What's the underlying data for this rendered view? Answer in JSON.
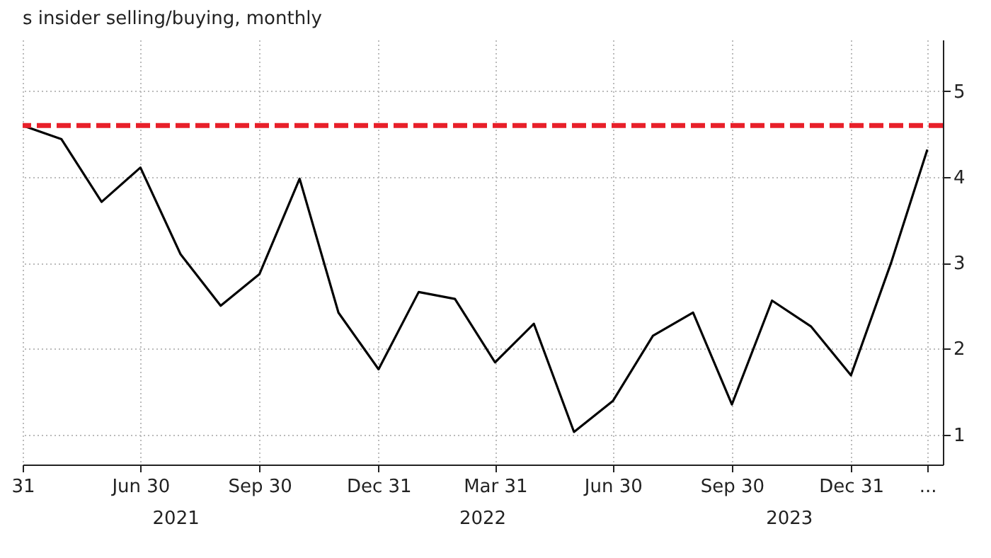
{
  "chart_data": {
    "type": "line",
    "subtitle": "s insider selling/buying, monthly",
    "x": [
      "2021-03-31",
      "2021-04-30",
      "2021-05-31",
      "2021-06-30",
      "2021-07-31",
      "2021-08-31",
      "2021-09-30",
      "2021-10-31",
      "2021-11-30",
      "2021-12-31",
      "2022-01-31",
      "2022-02-28",
      "2022-03-31",
      "2022-04-30",
      "2022-05-31",
      "2022-06-30",
      "2022-07-31",
      "2022-08-31",
      "2022-09-30",
      "2022-10-31",
      "2022-11-30",
      "2022-12-31",
      "2023-01-31",
      "2023-02-28"
    ],
    "series": [
      {
        "color": "#000000",
        "values": [
          4.6,
          4.44,
          3.71,
          4.11,
          3.1,
          2.5,
          2.87,
          3.98,
          2.42,
          1.76,
          2.66,
          2.58,
          1.84,
          2.29,
          1.03,
          1.39,
          2.15,
          2.42,
          1.35,
          2.56,
          2.26,
          1.69,
          3.0,
          4.32
        ]
      }
    ],
    "xlim": [
      "2021-03-31",
      "2023-03-12"
    ],
    "xticks": [
      {
        "value": "2021-03-31",
        "label": "31"
      },
      {
        "value": "2021-06-30",
        "label": "Jun 30"
      },
      {
        "value": "2021-09-30",
        "label": "Sep 30"
      },
      {
        "value": "2021-12-31",
        "label": "Dec 31"
      },
      {
        "value": "2022-03-31",
        "label": "Mar 31"
      },
      {
        "value": "2022-06-30",
        "label": "Jun 30"
      },
      {
        "value": "2022-09-30",
        "label": "Sep 30"
      },
      {
        "value": "2022-12-31",
        "label": "Dec 31"
      },
      {
        "value": "2023-02-28",
        "label": "..."
      }
    ],
    "ylim": [
      0.65,
      5.6
    ],
    "yticks": [
      1,
      2,
      3,
      4,
      5
    ],
    "grid": true,
    "ref_lines": [
      {
        "axis": "y",
        "value": 4.6,
        "color": "#e8202a",
        "line_style": "dashed"
      }
    ],
    "annotations": [
      "2021",
      "2022",
      "2023"
    ]
  }
}
